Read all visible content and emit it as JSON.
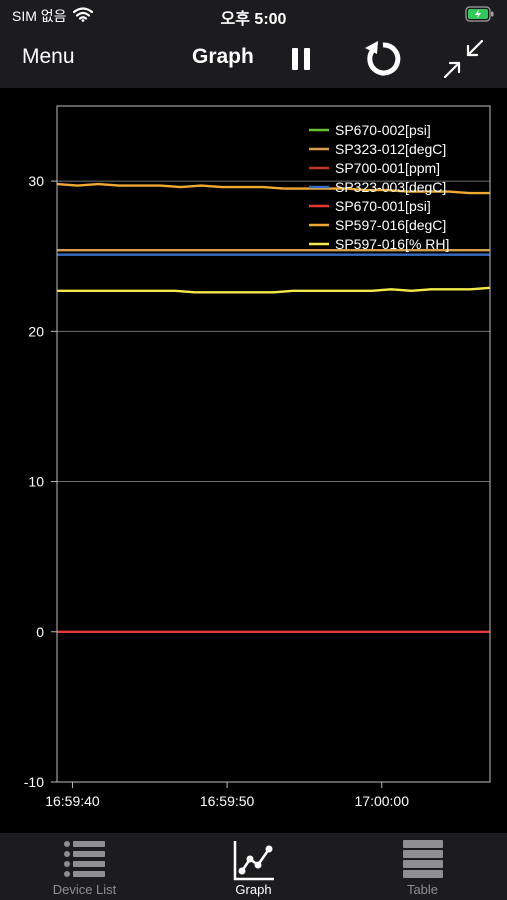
{
  "status_bar": {
    "carrier": "SIM 없음",
    "time": "오후 5:00",
    "icons": [
      "wifi-icon",
      "battery-charging-icon"
    ],
    "battery_color": "#34c759"
  },
  "nav": {
    "menu_label": "Menu",
    "title": "Graph",
    "icons": [
      "pause-icon",
      "refresh-icon",
      "collapse-icon"
    ]
  },
  "chart_data": {
    "type": "line",
    "ylim": [
      -10,
      35
    ],
    "yticks": [
      -10,
      0,
      10,
      20,
      30
    ],
    "ytick_labels": [
      "-10",
      "0",
      "10",
      "20",
      "30"
    ],
    "xticks": [
      "16:59:40",
      "16:59:50",
      "17:00:00"
    ],
    "xrange": [
      "16:59:39",
      "17:00:07"
    ],
    "grid": "horizontal",
    "legend_position": "top-right",
    "series": [
      {
        "name": "SP670-002[psi]",
        "color": "#6abf2c",
        "values": []
      },
      {
        "name": "SP323-012[degC]",
        "color": "#d4a04c",
        "values": [
          25.4,
          25.4
        ]
      },
      {
        "name": "SP700-001[ppm]",
        "color": "#c0392b",
        "values": []
      },
      {
        "name": "SP323-003[degC]",
        "color": "#3a6cc4",
        "values": [
          25.1,
          25.1
        ]
      },
      {
        "name": "SP670-001[psi]",
        "color": "#e53935",
        "values": [
          0,
          0
        ]
      },
      {
        "name": "SP597-016[degC]",
        "color": "#f0a832",
        "values": [
          29.8,
          29.7,
          29.8,
          29.7,
          29.7,
          29.7,
          29.6,
          29.7,
          29.6,
          29.6,
          29.6,
          29.5,
          29.5,
          29.5,
          29.5,
          29.4,
          29.4,
          29.3,
          29.3,
          29.3,
          29.2,
          29.2
        ]
      },
      {
        "name": "SP597-016[% RH]",
        "color": "#f5e94a",
        "values": [
          22.7,
          22.7,
          22.7,
          22.7,
          22.7,
          22.7,
          22.7,
          22.6,
          22.6,
          22.6,
          22.6,
          22.6,
          22.7,
          22.7,
          22.7,
          22.7,
          22.7,
          22.8,
          22.7,
          22.8,
          22.8,
          22.8,
          22.9
        ]
      }
    ]
  },
  "tabs": [
    {
      "label": "Device List",
      "icon": "list-icon",
      "active": false
    },
    {
      "label": "Graph",
      "icon": "graph-icon",
      "active": true
    },
    {
      "label": "Table",
      "icon": "table-icon",
      "active": false
    }
  ]
}
